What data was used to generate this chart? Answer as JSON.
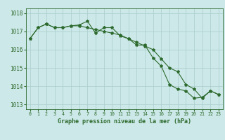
{
  "x": [
    0,
    1,
    2,
    3,
    4,
    5,
    6,
    7,
    8,
    9,
    10,
    11,
    12,
    13,
    14,
    15,
    16,
    17,
    18,
    19,
    20,
    21,
    22,
    23
  ],
  "line1": [
    1016.6,
    1017.2,
    1017.4,
    1017.2,
    1017.2,
    1017.3,
    1017.35,
    1017.55,
    1016.9,
    1017.2,
    1017.2,
    1016.75,
    1016.6,
    1016.25,
    1016.25,
    1015.55,
    1015.1,
    1014.1,
    1013.85,
    1013.75,
    1013.35,
    1013.4,
    1013.75,
    1013.55
  ],
  "line2": [
    1016.6,
    1017.2,
    1017.4,
    1017.2,
    1017.2,
    1017.3,
    1017.3,
    1017.2,
    1017.1,
    1017.0,
    1016.9,
    1016.8,
    1016.6,
    1016.4,
    1016.2,
    1016.0,
    1015.5,
    1015.0,
    1014.8,
    1014.1,
    1013.85,
    1013.35,
    1013.75,
    1013.55
  ],
  "ylim": [
    1012.75,
    1018.25
  ],
  "yticks": [
    1013,
    1014,
    1015,
    1016,
    1017,
    1018
  ],
  "xlabel": "Graphe pression niveau de la mer (hPa)",
  "line_color": "#2d6a2d",
  "bg_color": "#cce8e8",
  "grid_color": "#aacccc",
  "marker": "*",
  "marker_size": 3,
  "linewidth": 0.8,
  "xlim": [
    -0.5,
    23.5
  ]
}
